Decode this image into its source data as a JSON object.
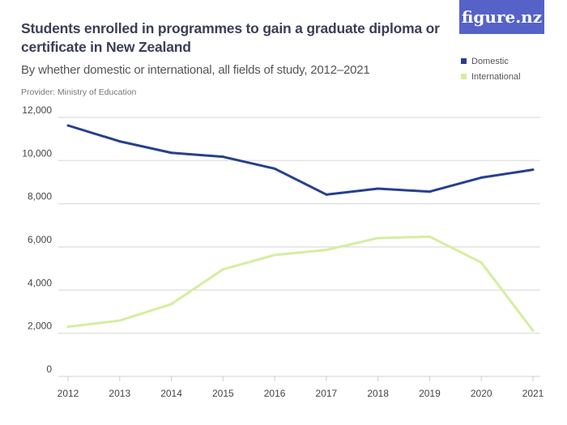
{
  "logo": "figure.nz",
  "chart_data": {
    "type": "line",
    "title": "Students enrolled in programmes to gain a graduate diploma or certificate in New Zealand",
    "subtitle": "By whether domestic or international, all fields of study, 2012–2021",
    "provider": "Provider: Ministry of Education",
    "x": [
      "2012",
      "2013",
      "2014",
      "2015",
      "2016",
      "2017",
      "2018",
      "2019",
      "2020",
      "2021"
    ],
    "series": [
      {
        "name": "Domestic",
        "color": "#26408f",
        "values": [
          11625,
          10890,
          10360,
          10175,
          9625,
          8425,
          8700,
          8560,
          9210,
          9575
        ]
      },
      {
        "name": "International",
        "color": "#d4eea0",
        "values": [
          2300,
          2590,
          3350,
          4960,
          5625,
          5860,
          6410,
          6475,
          5275,
          2125
        ]
      }
    ],
    "ylim": [
      0,
      12000
    ],
    "yticks": [
      "0",
      "2,000",
      "4,000",
      "6,000",
      "8,000",
      "10,000",
      "12,000"
    ],
    "ytick_values": [
      0,
      2000,
      4000,
      6000,
      8000,
      10000,
      12000
    ],
    "grid": true,
    "legend": "top-right",
    "xlabel": "",
    "ylabel": ""
  }
}
